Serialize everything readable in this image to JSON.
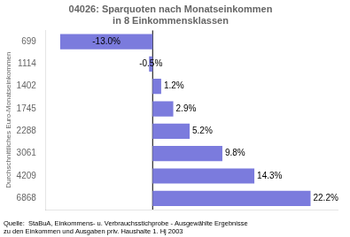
{
  "chart_data": {
    "type": "bar",
    "orientation": "horizontal",
    "title": "04026: Sparquoten nach Monatseinkommen\nin 8 Einkommensklassen",
    "categories": [
      "699",
      "1114",
      "1402",
      "1745",
      "2288",
      "3061",
      "4209",
      "6868"
    ],
    "values": [
      -13.0,
      -0.5,
      1.2,
      2.9,
      5.2,
      9.8,
      14.3,
      22.2
    ],
    "value_labels": [
      "-13.0%",
      "-0.5%",
      "1.2%",
      "2.9%",
      "5.2%",
      "9.8%",
      "14.3%",
      "22.2%"
    ],
    "data_labels": true,
    "color": "#7b7bdd",
    "ylabel": "Durchschnittliches Euro-Monatseinkommen",
    "source": "Quelle:  StaBuA, Einkommens- u. Verbrauchsstichprobe - Ausgewählte Ergebnisse\nzu den Einkommen und Ausgaben priv. Haushalte 1. Hj 2003",
    "xlim": [
      -15,
      26
    ],
    "xticks": [],
    "tick_labels": "y",
    "grid": false,
    "legend": false
  }
}
